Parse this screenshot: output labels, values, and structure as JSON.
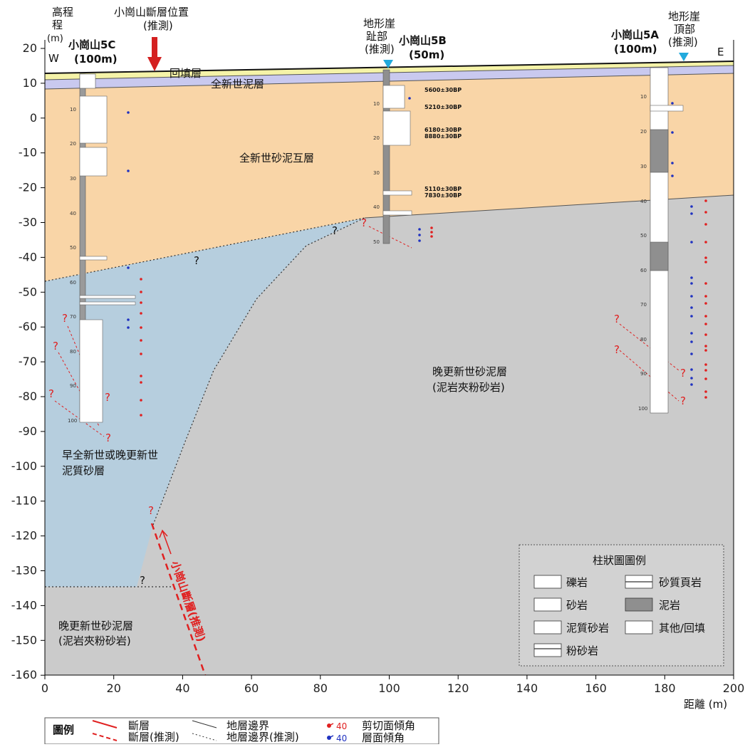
{
  "axes": {
    "y_title": "高程",
    "y_title2": "程",
    "y_unit": "(m)",
    "x_label": "距離 (m)",
    "y_ticks": [
      "20",
      "10",
      "0",
      "-10",
      "-20",
      "-30",
      "-40",
      "-50",
      "-60",
      "-70",
      "-80",
      "-90",
      "-100",
      "-110",
      "-120",
      "-130",
      "-140",
      "-150",
      "-160"
    ],
    "x_ticks": [
      "0",
      "20",
      "40",
      "60",
      "80",
      "100",
      "120",
      "140",
      "160",
      "180",
      "200"
    ],
    "west": "W",
    "east": "E"
  },
  "top_labels": {
    "fault_pos_1": "小崗山斷層位置",
    "fault_pos_2": "(推測)",
    "toe_1": "地形崖",
    "toe_2": "趾部",
    "toe_3": "(推測)",
    "crest_1": "地形崖",
    "crest_2": "頂部",
    "crest_3": "(推測)"
  },
  "boreholes": [
    {
      "name": "小崗山5C",
      "depth": "(100m)"
    },
    {
      "name": "小崗山5B",
      "depth": "(50m)"
    },
    {
      "name": "小崗山5A",
      "depth": "(100m)"
    }
  ],
  "layers": {
    "fill": "回填層",
    "holocene_mud": "全新世泥層",
    "holocene_sand_mud": "全新世砂泥互層",
    "late_pleist_1": "晚更新世砂泥層",
    "late_pleist_2": "(泥岩夾粉砂岩)",
    "early_1": "早全新世或晚更新世",
    "early_2": "泥質砂層",
    "late_pleist_b1": "晚更新世砂泥層",
    "late_pleist_b2": "(泥岩夾粉砂岩)"
  },
  "dates": [
    "5600±30BP",
    "5210±30BP",
    "6180±30BP",
    "8880±30BP",
    "5110±30BP",
    "7830±30BP"
  ],
  "fault_label": "小崗山斷層(推測)",
  "column_legend": {
    "title": "柱狀圖圖例",
    "items": [
      "礫岩",
      "砂質頁岩",
      "砂岩",
      "泥岩",
      "泥質砂岩",
      "其他/回填",
      "粉砂岩"
    ]
  },
  "bottom_legend": {
    "title": "圖例",
    "fault": "斷層",
    "fault_inferred": "斷層(推測)",
    "boundary": "地層邊界",
    "boundary_inferred": "地層邊界(推測)",
    "shear_value": "40",
    "shear": "剪切面傾角",
    "bedding_value": "40",
    "bedding": "層面傾角"
  },
  "question_mark": "?",
  "colors": {
    "sand_mud": "#f9d5a7",
    "early_sand": "#b6cede",
    "pleistocene": "#cbcbcb",
    "holocene_mud": "#c9c9ef",
    "fill": "#f5f3a8",
    "fault": "#e02020",
    "bedding": "#2032c0"
  }
}
